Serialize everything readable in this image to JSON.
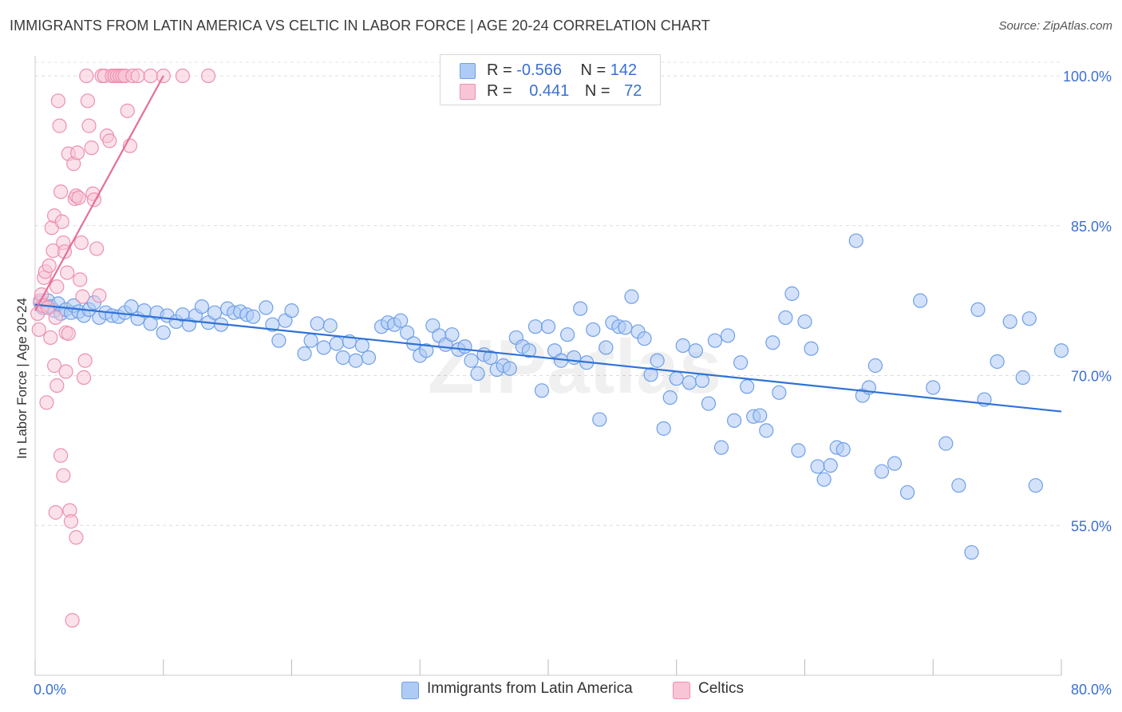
{
  "title": "IMMIGRANTS FROM LATIN AMERICA VS CELTIC IN LABOR FORCE | AGE 20-24 CORRELATION CHART",
  "source": "Source: ZipAtlas.com",
  "watermark": "ZIPatlas",
  "legend": {
    "row1": {
      "r_label": "R = ",
      "r_value": "-0.566",
      "n_label": "N = ",
      "n_value": "142"
    },
    "row2": {
      "r_label": "R = ",
      "r_value": "0.441",
      "n_label": "N = ",
      "n_value": "72"
    }
  },
  "colors": {
    "blue": "#6f9fe8",
    "blue_fill": "#aecbf5",
    "blue_line": "#2f72d6",
    "pink": "#ee8fb0",
    "pink_fill": "#f8c5d6",
    "pink_line": "#e56e9a",
    "tick_text": "#3b6fd4"
  },
  "chart_data": {
    "type": "scatter",
    "xlabel": "",
    "ylabel": "In Labor Force | Age 20-24",
    "xlim": [
      0,
      80
    ],
    "ylim": [
      40,
      102
    ],
    "x_tick_labels": [
      "0.0%",
      "80.0%"
    ],
    "y_ticks": [
      55,
      70,
      85,
      100
    ],
    "y_tick_labels": [
      "55.0%",
      "70.0%",
      "85.0%",
      "100.0%"
    ],
    "grid": true,
    "series": [
      {
        "name": "Immigrants from Latin America",
        "color": "#6f9fe8",
        "trend": {
          "x": [
            0,
            80
          ],
          "y": [
            77.1,
            66.4
          ]
        },
        "points": [
          [
            0.4,
            77.3
          ],
          [
            0.6,
            76.8
          ],
          [
            1.0,
            77.5
          ],
          [
            1.2,
            76.9
          ],
          [
            1.5,
            76.5
          ],
          [
            1.8,
            77.2
          ],
          [
            2.0,
            76.2
          ],
          [
            2.4,
            76.6
          ],
          [
            2.8,
            76.3
          ],
          [
            3.0,
            77.0
          ],
          [
            3.4,
            76.4
          ],
          [
            3.8,
            76.0
          ],
          [
            4.2,
            76.6
          ],
          [
            4.6,
            77.3
          ],
          [
            5.0,
            75.8
          ],
          [
            5.5,
            76.3
          ],
          [
            6.0,
            76.0
          ],
          [
            6.5,
            75.9
          ],
          [
            7.0,
            76.3
          ],
          [
            7.5,
            76.9
          ],
          [
            8.0,
            75.7
          ],
          [
            8.5,
            76.5
          ],
          [
            9.0,
            75.2
          ],
          [
            9.5,
            76.3
          ],
          [
            10.0,
            74.3
          ],
          [
            10.3,
            76.0
          ],
          [
            11.0,
            75.4
          ],
          [
            11.5,
            76.1
          ],
          [
            12.0,
            75.1
          ],
          [
            12.5,
            76.0
          ],
          [
            13.0,
            76.9
          ],
          [
            13.5,
            75.3
          ],
          [
            14.0,
            76.3
          ],
          [
            14.5,
            75.1
          ],
          [
            15.0,
            76.7
          ],
          [
            15.5,
            76.3
          ],
          [
            16.0,
            76.4
          ],
          [
            16.5,
            76.1
          ],
          [
            17.0,
            75.9
          ],
          [
            18.0,
            76.8
          ],
          [
            18.5,
            75.1
          ],
          [
            19.0,
            73.5
          ],
          [
            19.5,
            75.5
          ],
          [
            20.0,
            76.5
          ],
          [
            21.0,
            72.2
          ],
          [
            21.5,
            73.5
          ],
          [
            22.0,
            75.2
          ],
          [
            22.5,
            72.8
          ],
          [
            23.0,
            75.0
          ],
          [
            23.5,
            73.2
          ],
          [
            24.0,
            71.8
          ],
          [
            24.5,
            73.4
          ],
          [
            25.0,
            71.5
          ],
          [
            25.5,
            73.0
          ],
          [
            26.0,
            71.8
          ],
          [
            27.0,
            74.9
          ],
          [
            27.5,
            75.3
          ],
          [
            28.0,
            75.1
          ],
          [
            28.5,
            75.5
          ],
          [
            29.0,
            74.3
          ],
          [
            29.5,
            73.2
          ],
          [
            30.0,
            72.0
          ],
          [
            30.5,
            72.5
          ],
          [
            31.0,
            75.0
          ],
          [
            31.5,
            74.0
          ],
          [
            32.0,
            73.1
          ],
          [
            32.5,
            74.1
          ],
          [
            33.0,
            72.6
          ],
          [
            33.5,
            72.9
          ],
          [
            34.0,
            71.5
          ],
          [
            34.5,
            70.2
          ],
          [
            35.0,
            72.1
          ],
          [
            35.5,
            71.8
          ],
          [
            36.0,
            70.6
          ],
          [
            36.5,
            71.0
          ],
          [
            37.0,
            70.7
          ],
          [
            37.5,
            73.8
          ],
          [
            38.0,
            72.9
          ],
          [
            38.5,
            72.5
          ],
          [
            39.0,
            74.9
          ],
          [
            39.5,
            68.5
          ],
          [
            40.0,
            74.9
          ],
          [
            40.5,
            72.5
          ],
          [
            41.0,
            71.5
          ],
          [
            41.5,
            74.1
          ],
          [
            42.0,
            71.8
          ],
          [
            42.5,
            76.7
          ],
          [
            43.0,
            71.3
          ],
          [
            43.5,
            74.6
          ],
          [
            44.0,
            65.6
          ],
          [
            44.5,
            72.8
          ],
          [
            45.0,
            75.3
          ],
          [
            45.5,
            74.9
          ],
          [
            46.0,
            74.8
          ],
          [
            46.5,
            77.9
          ],
          [
            47.0,
            74.4
          ],
          [
            47.5,
            73.7
          ],
          [
            48.0,
            70.1
          ],
          [
            48.5,
            71.5
          ],
          [
            49.0,
            64.7
          ],
          [
            49.5,
            67.8
          ],
          [
            50.0,
            69.7
          ],
          [
            50.5,
            73.0
          ],
          [
            51.0,
            69.3
          ],
          [
            51.5,
            72.5
          ],
          [
            52.0,
            69.5
          ],
          [
            52.5,
            67.2
          ],
          [
            53.0,
            73.5
          ],
          [
            53.5,
            62.8
          ],
          [
            54.0,
            74.0
          ],
          [
            54.5,
            65.5
          ],
          [
            55.0,
            71.3
          ],
          [
            55.5,
            68.9
          ],
          [
            56.0,
            65.9
          ],
          [
            56.5,
            66.0
          ],
          [
            57.0,
            64.5
          ],
          [
            57.5,
            73.3
          ],
          [
            58.0,
            68.3
          ],
          [
            58.5,
            75.8
          ],
          [
            59.0,
            78.2
          ],
          [
            59.5,
            62.5
          ],
          [
            60.0,
            75.4
          ],
          [
            60.5,
            72.7
          ],
          [
            61.0,
            60.9
          ],
          [
            61.5,
            59.6
          ],
          [
            62.0,
            61.0
          ],
          [
            62.5,
            62.8
          ],
          [
            63.0,
            62.6
          ],
          [
            64.0,
            83.5
          ],
          [
            64.5,
            68.0
          ],
          [
            65.0,
            68.8
          ],
          [
            65.5,
            71.0
          ],
          [
            66.0,
            60.4
          ],
          [
            67.0,
            61.2
          ],
          [
            68.0,
            58.3
          ],
          [
            69.0,
            77.5
          ],
          [
            70.0,
            68.8
          ],
          [
            71.0,
            63.2
          ],
          [
            72.0,
            59.0
          ],
          [
            73.0,
            52.3
          ],
          [
            73.5,
            76.6
          ],
          [
            74.0,
            67.6
          ],
          [
            75.0,
            71.4
          ],
          [
            76.0,
            75.4
          ],
          [
            77.0,
            69.8
          ],
          [
            77.5,
            75.7
          ],
          [
            78.0,
            59.0
          ],
          [
            80.0,
            72.5
          ]
        ]
      },
      {
        "name": "Celtics",
        "color": "#ee8fb0",
        "trend": {
          "x": [
            0,
            10
          ],
          "y": [
            76.5,
            100
          ]
        },
        "points": [
          [
            0.2,
            76.2
          ],
          [
            0.3,
            74.6
          ],
          [
            0.4,
            77.5
          ],
          [
            0.5,
            78.1
          ],
          [
            0.6,
            77.0
          ],
          [
            0.7,
            79.8
          ],
          [
            0.8,
            80.4
          ],
          [
            0.9,
            67.3
          ],
          [
            1.0,
            76.8
          ],
          [
            1.1,
            81.0
          ],
          [
            1.2,
            73.8
          ],
          [
            1.3,
            84.8
          ],
          [
            1.4,
            82.5
          ],
          [
            1.5,
            86.0
          ],
          [
            1.6,
            75.8
          ],
          [
            1.7,
            78.9
          ],
          [
            1.8,
            97.5
          ],
          [
            1.9,
            95.0
          ],
          [
            2.0,
            88.4
          ],
          [
            2.1,
            85.4
          ],
          [
            2.2,
            83.3
          ],
          [
            2.3,
            82.4
          ],
          [
            2.4,
            74.3
          ],
          [
            2.5,
            80.3
          ],
          [
            2.6,
            92.2
          ],
          [
            2.7,
            56.5
          ],
          [
            2.8,
            55.4
          ],
          [
            2.9,
            45.5
          ],
          [
            3.0,
            91.2
          ],
          [
            3.1,
            87.7
          ],
          [
            3.2,
            88.0
          ],
          [
            3.3,
            92.3
          ],
          [
            3.4,
            87.8
          ],
          [
            3.5,
            79.6
          ],
          [
            3.6,
            83.3
          ],
          [
            3.7,
            77.9
          ],
          [
            3.8,
            69.8
          ],
          [
            3.9,
            71.5
          ],
          [
            4.0,
            100.0
          ],
          [
            4.1,
            97.5
          ],
          [
            4.2,
            95.0
          ],
          [
            4.4,
            92.8
          ],
          [
            4.5,
            88.2
          ],
          [
            4.6,
            87.6
          ],
          [
            4.8,
            82.7
          ],
          [
            5.0,
            78.0
          ],
          [
            5.2,
            100.0
          ],
          [
            5.4,
            100.0
          ],
          [
            5.6,
            94.0
          ],
          [
            5.8,
            93.5
          ],
          [
            6.0,
            100.0
          ],
          [
            6.2,
            100.0
          ],
          [
            6.4,
            100.0
          ],
          [
            6.6,
            100.0
          ],
          [
            6.8,
            100.0
          ],
          [
            7.0,
            100.0
          ],
          [
            7.2,
            96.5
          ],
          [
            7.4,
            93.0
          ],
          [
            7.6,
            100.0
          ],
          [
            8.0,
            100.0
          ],
          [
            9.0,
            100.0
          ],
          [
            10.0,
            100.0
          ],
          [
            11.5,
            100.0
          ],
          [
            13.5,
            100.0
          ],
          [
            1.5,
            71.0
          ],
          [
            1.7,
            69.0
          ],
          [
            2.0,
            62.0
          ],
          [
            2.2,
            60.0
          ],
          [
            2.4,
            70.4
          ],
          [
            1.6,
            56.3
          ],
          [
            3.2,
            53.8
          ],
          [
            2.6,
            74.2
          ]
        ]
      }
    ]
  },
  "bottom_legend": [
    "Immigrants from Latin America",
    "Celtics"
  ]
}
